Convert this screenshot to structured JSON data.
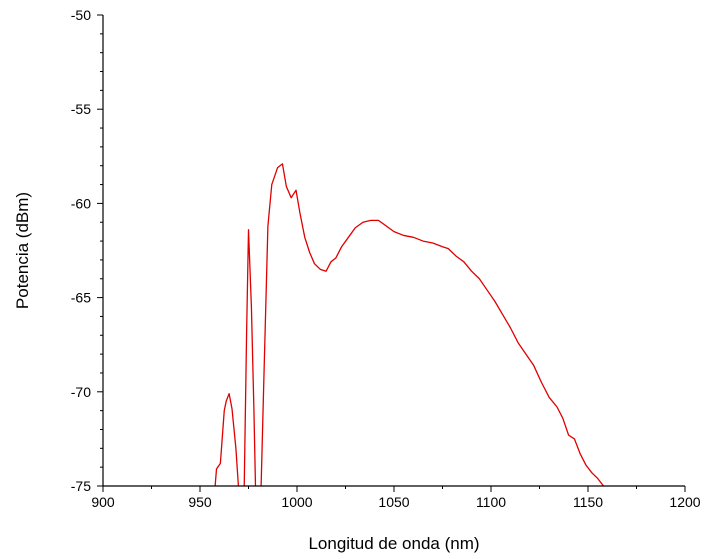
{
  "chart_data": {
    "type": "line",
    "title": "",
    "xlabel": "Longitud de onda (nm)",
    "ylabel": "Potencia (dBm)",
    "xlim": [
      900,
      1200
    ],
    "ylim": [
      -75,
      -50
    ],
    "xticks": [
      900,
      950,
      1000,
      1050,
      1100,
      1150,
      1200
    ],
    "xtick_labels": [
      "900",
      "950",
      "1000",
      "1050",
      "1100",
      "1150",
      "1200"
    ],
    "yticks": [
      -75,
      -70,
      -65,
      -60,
      -55,
      -50
    ],
    "ytick_labels": [
      "-75",
      "-70",
      "-65",
      "-60",
      "-55",
      "-50"
    ],
    "grid": false,
    "series": [
      {
        "color": "#e00000",
        "segments": [
          [
            [
              957.8,
              -75
            ],
            [
              958.5,
              -74.1
            ],
            [
              960.5,
              -73.8
            ],
            [
              962.5,
              -71
            ],
            [
              963.5,
              -70.5
            ],
            [
              965,
              -70.1
            ],
            [
              966.5,
              -70.9
            ],
            [
              968.5,
              -73
            ],
            [
              969.8,
              -75
            ]
          ],
          [
            [
              972.8,
              -75
            ],
            [
              974,
              -67
            ],
            [
              975,
              -61.4
            ],
            [
              976.5,
              -65.5
            ],
            [
              977.8,
              -71
            ],
            [
              978.6,
              -75
            ]
          ],
          [
            [
              981.5,
              -75
            ],
            [
              983,
              -69
            ],
            [
              985,
              -61.2
            ],
            [
              987,
              -59
            ],
            [
              990,
              -58.1
            ],
            [
              992.5,
              -57.9
            ],
            [
              994.5,
              -59.1
            ],
            [
              997,
              -59.7
            ],
            [
              999.5,
              -59.3
            ],
            [
              1001.5,
              -60.5
            ],
            [
              1004,
              -61.8
            ],
            [
              1006.5,
              -62.6
            ],
            [
              1009,
              -63.2
            ],
            [
              1012,
              -63.5
            ],
            [
              1015,
              -63.6
            ],
            [
              1017.5,
              -63.1
            ],
            [
              1020,
              -62.9
            ],
            [
              1023,
              -62.3
            ],
            [
              1026.5,
              -61.8
            ],
            [
              1030,
              -61.3
            ],
            [
              1034,
              -61
            ],
            [
              1038,
              -60.9
            ],
            [
              1042,
              -60.9
            ],
            [
              1046,
              -61.2
            ],
            [
              1050,
              -61.5
            ],
            [
              1055,
              -61.7
            ],
            [
              1060,
              -61.8
            ],
            [
              1065,
              -62
            ],
            [
              1070,
              -62.1
            ],
            [
              1075,
              -62.3
            ],
            [
              1078,
              -62.4
            ],
            [
              1082,
              -62.8
            ],
            [
              1086,
              -63.1
            ],
            [
              1090,
              -63.6
            ],
            [
              1094,
              -64
            ],
            [
              1098,
              -64.6
            ],
            [
              1102,
              -65.2
            ],
            [
              1106,
              -65.9
            ],
            [
              1110,
              -66.6
            ],
            [
              1114,
              -67.4
            ],
            [
              1118,
              -68
            ],
            [
              1122,
              -68.6
            ],
            [
              1126,
              -69.5
            ],
            [
              1130,
              -70.3
            ],
            [
              1134,
              -70.8
            ],
            [
              1137,
              -71.4
            ],
            [
              1140,
              -72.3
            ],
            [
              1143,
              -72.5
            ],
            [
              1146,
              -73.3
            ],
            [
              1149,
              -73.9
            ],
            [
              1152,
              -74.3
            ],
            [
              1155,
              -74.6
            ],
            [
              1158,
              -75
            ]
          ]
        ]
      }
    ]
  }
}
